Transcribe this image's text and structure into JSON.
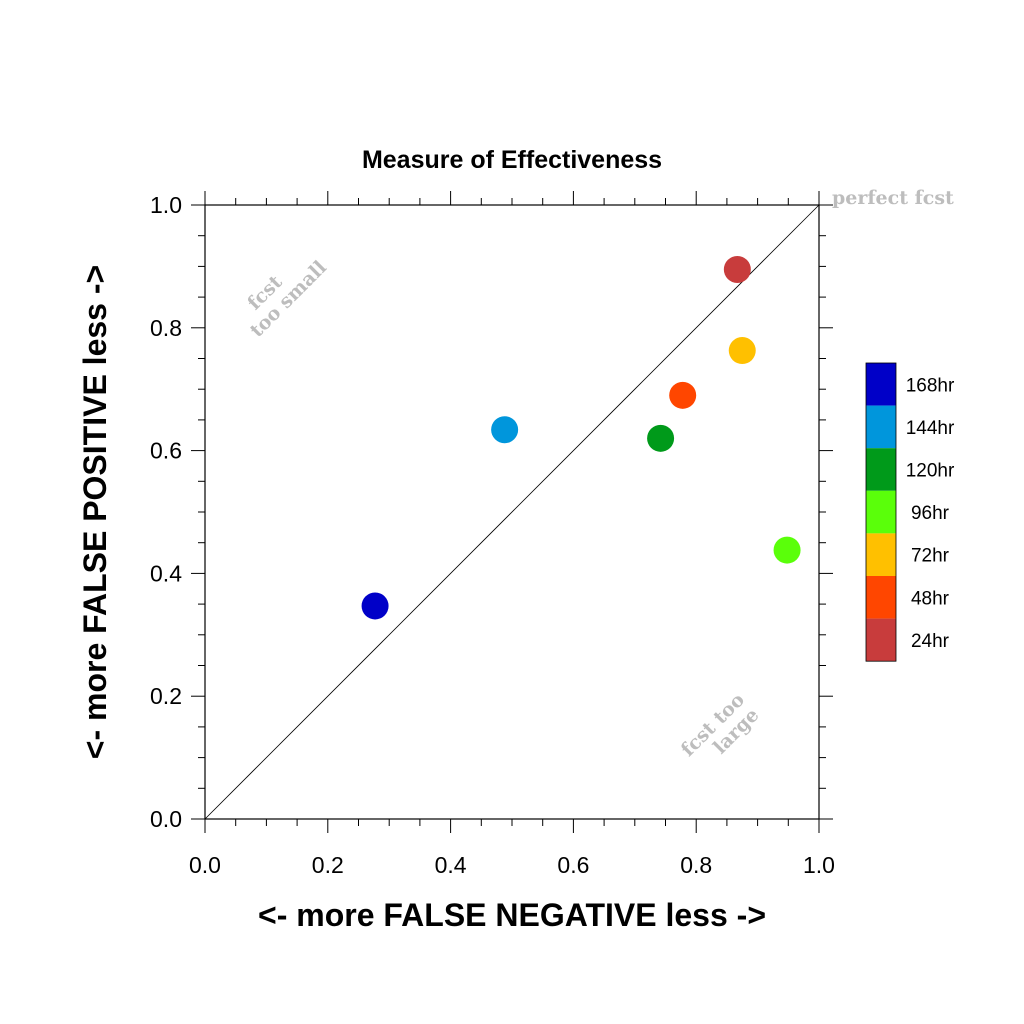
{
  "chart_data": {
    "type": "scatter",
    "title": "Measure of Effectiveness",
    "xlabel": "<- more   FALSE NEGATIVE   less ->",
    "ylabel": "<- more   FALSE POSITIVE   less ->",
    "xlim": [
      0,
      1
    ],
    "ylim": [
      0,
      1
    ],
    "x_ticks": [
      "0.0",
      "0.2",
      "0.4",
      "0.6",
      "0.8",
      "1.0"
    ],
    "y_ticks": [
      "0.0",
      "0.2",
      "0.4",
      "0.6",
      "0.8",
      "1.0"
    ],
    "grid": false,
    "reference_line": {
      "from": [
        0,
        0
      ],
      "to": [
        1,
        1
      ]
    },
    "annotations": {
      "perfect": "perfect fcst",
      "small_line1": "fcst",
      "small_line2": "too small",
      "large_line1": "fcst too",
      "large_line2": "large"
    },
    "legend_position": "right",
    "series": [
      {
        "name": "168hr",
        "color": "#0000c8",
        "x": 0.277,
        "y": 0.347
      },
      {
        "name": "144hr",
        "color": "#0096dc",
        "x": 0.488,
        "y": 0.634
      },
      {
        "name": "120hr",
        "color": "#009a1a",
        "x": 0.742,
        "y": 0.62
      },
      {
        "name": "96hr",
        "color": "#5aff0a",
        "x": 0.948,
        "y": 0.438
      },
      {
        "name": "72hr",
        "color": "#ffc000",
        "x": 0.875,
        "y": 0.763
      },
      {
        "name": "48hr",
        "color": "#ff4600",
        "x": 0.778,
        "y": 0.69
      },
      {
        "name": "24hr",
        "color": "#c83c3c",
        "x": 0.867,
        "y": 0.895
      }
    ]
  }
}
